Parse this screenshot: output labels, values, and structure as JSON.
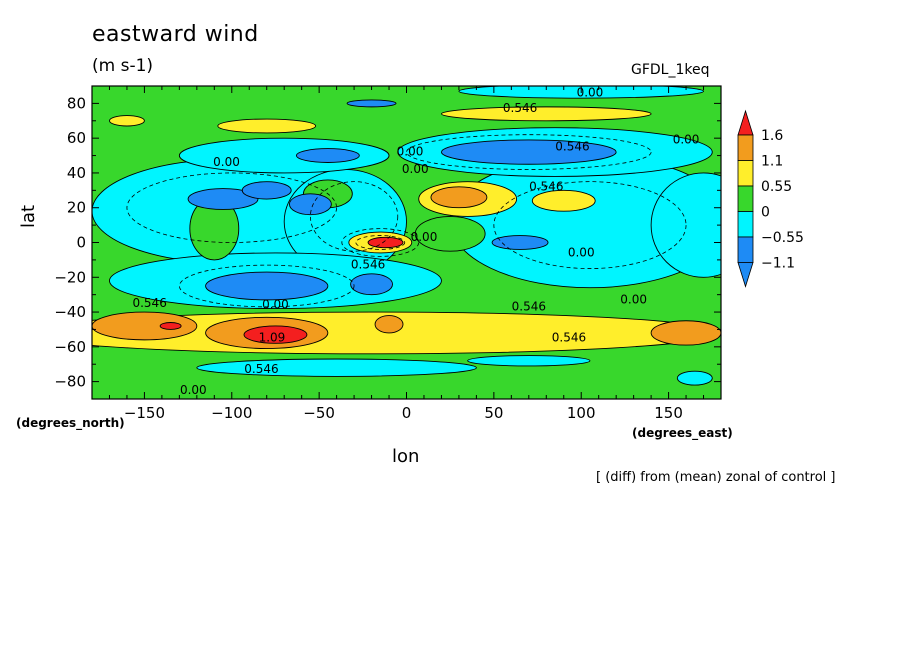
{
  "header": {
    "title": "eastward wind",
    "units": "(m s-1)",
    "model": "GFDL_1keq",
    "footer": "[ (diff) from (mean) zonal of control ]"
  },
  "colors": {
    "red": "#f41f1f",
    "orange": "#f29c1e",
    "yellow": "#ffee2b",
    "green": "#38d72c",
    "cyan": "#00f5ff",
    "blue": "#1e8bf5"
  },
  "chart_data": {
    "type": "heatmap",
    "title": "eastward wind",
    "xlabel": "lon",
    "ylabel": "lat",
    "x_unit_label": "(degrees_east)",
    "y_unit_label": "(degrees_north)",
    "xlim": [
      -180,
      180
    ],
    "ylim": [
      -90,
      90
    ],
    "x_ticks": [
      -150,
      -100,
      -50,
      0,
      50,
      100,
      150
    ],
    "y_ticks": [
      -80,
      -60,
      -40,
      -20,
      0,
      20,
      40,
      60,
      80
    ],
    "colorbar": {
      "labels": [
        "1.6",
        "1.1",
        "0.55",
        "0",
        "-0.55",
        "-1.1"
      ],
      "levels": [
        1.6,
        1.1,
        0.55,
        0,
        -0.55,
        -1.1
      ]
    },
    "contour_labels": [
      {
        "text": "0.00",
        "lon": 105,
        "lat": 84
      },
      {
        "text": "0.546",
        "lon": 65,
        "lat": 75
      },
      {
        "text": "0.546",
        "lon": 95,
        "lat": 53
      },
      {
        "text": "0.00",
        "lon": 160,
        "lat": 57
      },
      {
        "text": "0.00",
        "lon": 2,
        "lat": 50
      },
      {
        "text": "0.00",
        "lon": 5,
        "lat": 40
      },
      {
        "text": "0.00",
        "lon": -103,
        "lat": 44
      },
      {
        "text": "0.546",
        "lon": 80,
        "lat": 30
      },
      {
        "text": "0.00",
        "lon": 10,
        "lat": 1
      },
      {
        "text": "0.00",
        "lon": 100,
        "lat": -8
      },
      {
        "text": "0.546",
        "lon": -22,
        "lat": -15
      },
      {
        "text": "0.546",
        "lon": 70,
        "lat": -39
      },
      {
        "text": "0.00",
        "lon": 130,
        "lat": -35
      },
      {
        "text": "0.546",
        "lon": -147,
        "lat": -37
      },
      {
        "text": "0.00",
        "lon": -75,
        "lat": -38
      },
      {
        "text": "1.09",
        "lon": -77,
        "lat": -57
      },
      {
        "text": "0.546",
        "lon": 93,
        "lat": -57
      },
      {
        "text": "0.546",
        "lon": -83,
        "lat": -75
      },
      {
        "text": "0.00",
        "lon": -122,
        "lat": -87
      }
    ]
  }
}
